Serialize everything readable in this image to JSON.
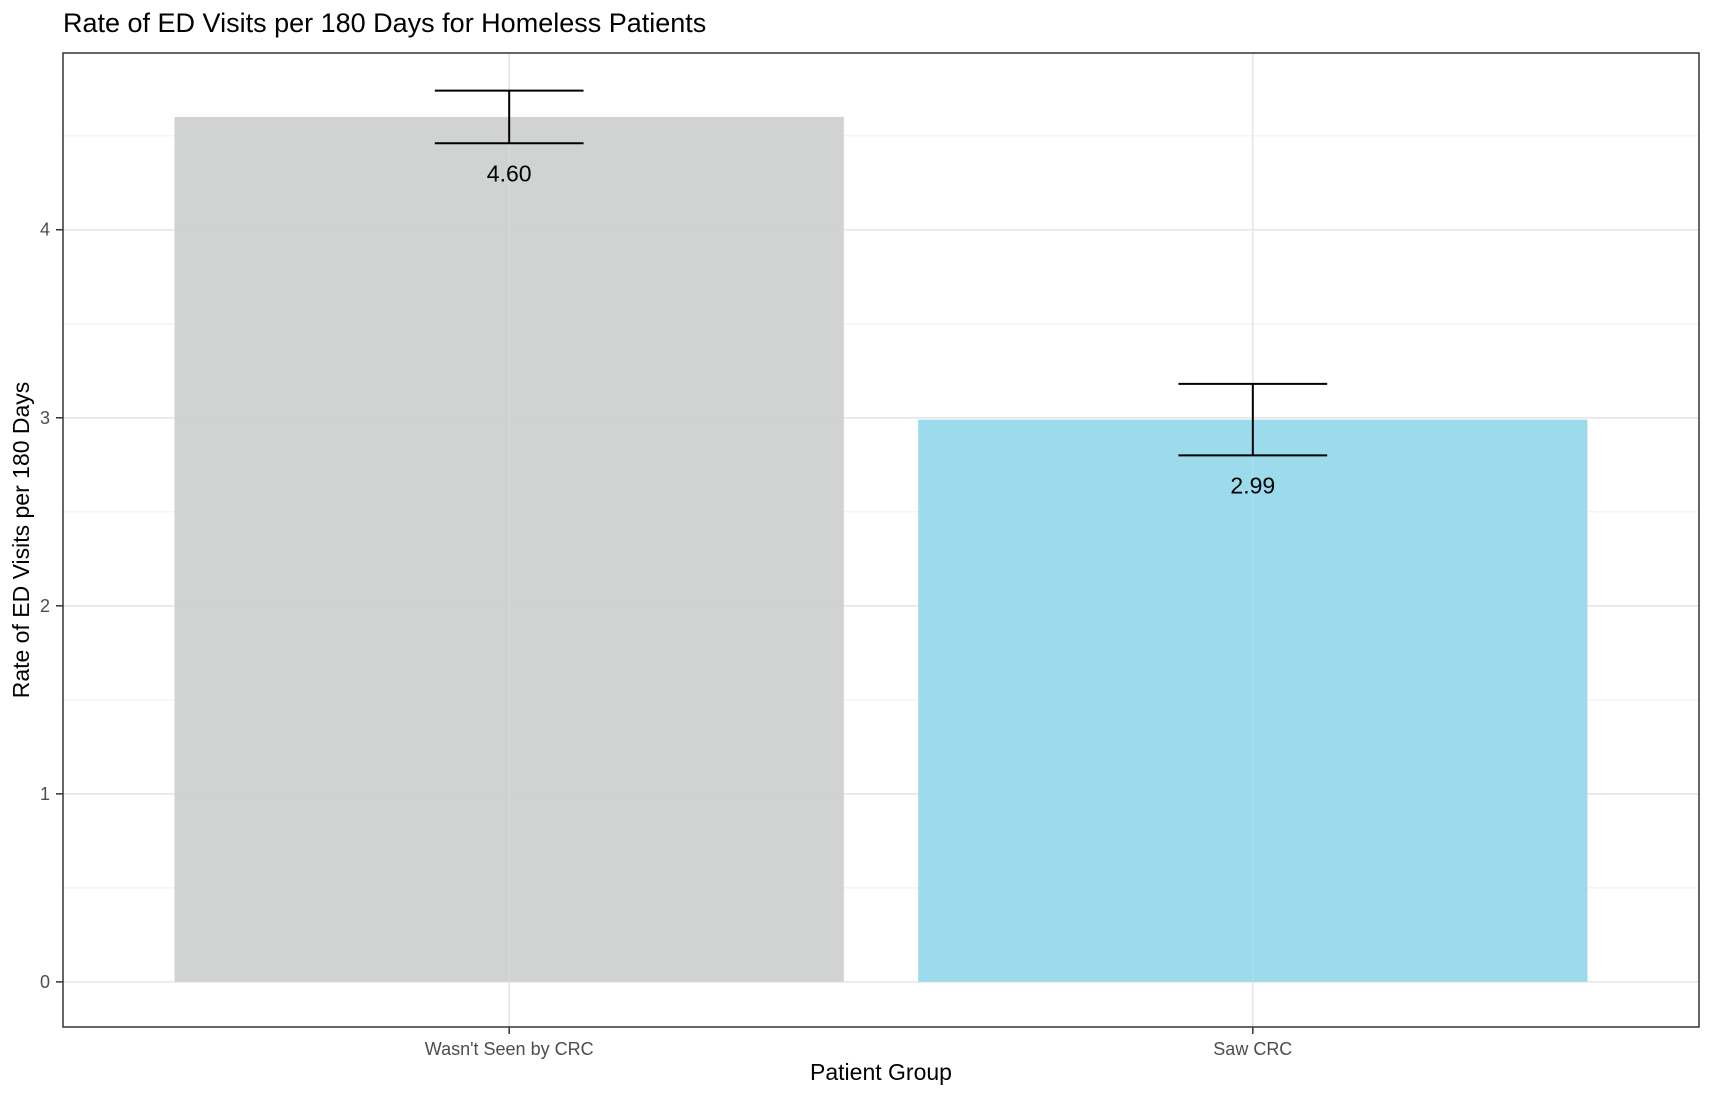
{
  "chart_data": {
    "type": "bar",
    "title": "Rate of ED Visits per 180 Days for Homeless Patients",
    "xlabel": "Patient Group",
    "ylabel": "Rate of ED Visits per 180 Days",
    "categories": [
      "Wasn't Seen by CRC",
      "Saw CRC"
    ],
    "values": [
      4.6,
      2.99
    ],
    "value_labels": [
      "4.60",
      "2.99"
    ],
    "error_low": [
      4.46,
      2.8
    ],
    "error_high": [
      4.74,
      3.18
    ],
    "bar_colors": [
      "#cfd1d1",
      "#97d9eb"
    ],
    "ylim": [
      -0.24,
      4.94
    ],
    "yticks": [
      0,
      1,
      2,
      3,
      4
    ],
    "grid": true,
    "legend": "none"
  }
}
